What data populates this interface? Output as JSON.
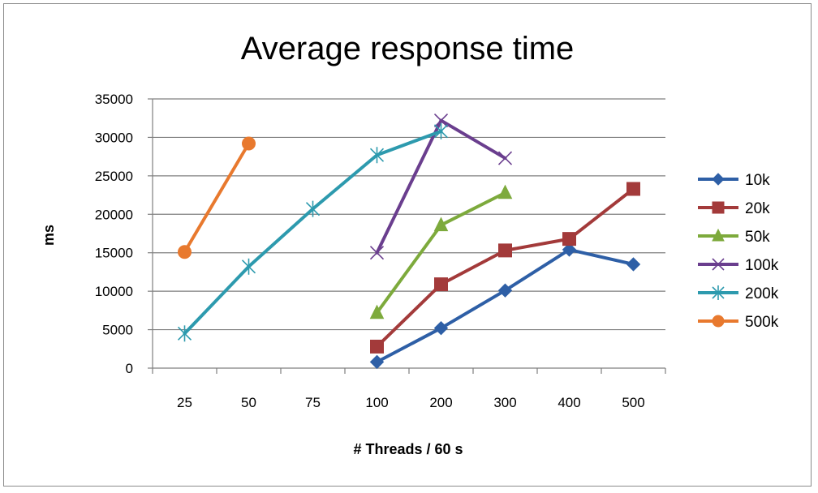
{
  "chart_data": {
    "type": "line",
    "title": "Average response time",
    "xlabel": "# Threads / 60 s",
    "ylabel": "ms",
    "categories": [
      "25",
      "50",
      "75",
      "100",
      "200",
      "300",
      "400",
      "500"
    ],
    "ylim": [
      0,
      35000
    ],
    "yticks": [
      0,
      5000,
      10000,
      15000,
      20000,
      25000,
      30000,
      35000
    ],
    "grid": "horizontal",
    "legend_position": "right",
    "series": [
      {
        "name": "10k",
        "color": "#2E5FA6",
        "marker": "diamond",
        "values": [
          null,
          null,
          null,
          800,
          5200,
          10100,
          15400,
          13500
        ]
      },
      {
        "name": "20k",
        "color": "#A33A3A",
        "marker": "square",
        "values": [
          null,
          null,
          null,
          2800,
          10900,
          15300,
          16800,
          23300
        ]
      },
      {
        "name": "50k",
        "color": "#7DAA3C",
        "marker": "triangle",
        "values": [
          null,
          null,
          null,
          7200,
          18600,
          22800,
          null,
          null
        ]
      },
      {
        "name": "100k",
        "color": "#6A3E8E",
        "marker": "x",
        "values": [
          null,
          null,
          null,
          15000,
          32200,
          27300,
          null,
          null
        ]
      },
      {
        "name": "200k",
        "color": "#2D9AAE",
        "marker": "star",
        "values": [
          4500,
          13200,
          20700,
          27700,
          30800,
          null,
          null,
          null
        ]
      },
      {
        "name": "500k",
        "color": "#E8792E",
        "marker": "circle",
        "values": [
          15100,
          29200,
          null,
          null,
          null,
          null,
          null,
          null
        ]
      }
    ]
  }
}
